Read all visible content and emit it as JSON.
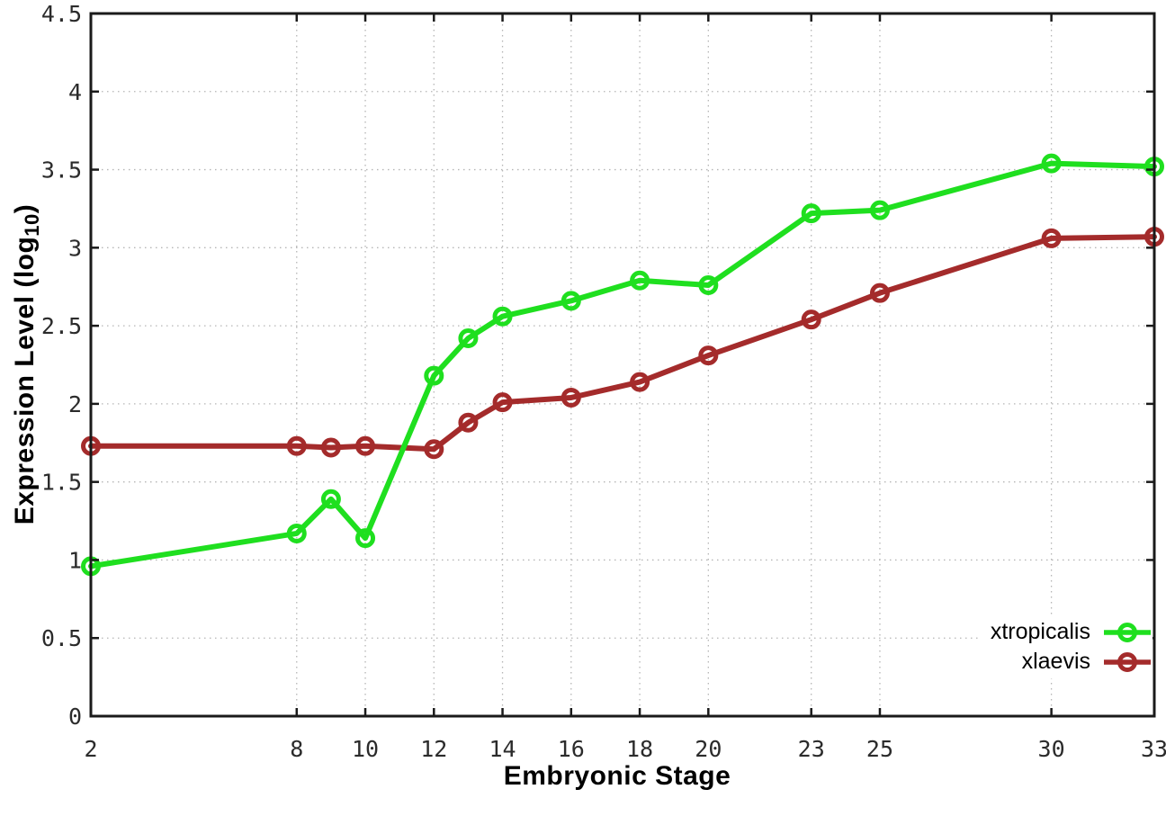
{
  "chart_data": {
    "type": "line",
    "title": "",
    "xlabel": "Embryonic Stage",
    "ylabel_parts": {
      "main": "Expression Level (log",
      "sub": "10",
      "close": ")"
    },
    "xlim": [
      2,
      33
    ],
    "ylim": [
      0,
      4.5
    ],
    "grid": true,
    "grid_style": "dotted",
    "legend_position": "inside-bottom-right",
    "background_color": "#ffffff",
    "border_color": "#1a1a1a",
    "grid_color": "#b5b5b5",
    "tick_label_color": "#2b2b2b",
    "x_ticks": [
      2,
      8,
      10,
      12,
      14,
      16,
      18,
      20,
      23,
      25,
      30,
      33
    ],
    "x_tick_labels": [
      "2",
      "8",
      "10",
      "12",
      "14",
      "16",
      "18",
      "20",
      "23",
      "25",
      "30",
      "33"
    ],
    "y_ticks": [
      0,
      0.5,
      1,
      1.5,
      2,
      2.5,
      3,
      3.5,
      4,
      4.5
    ],
    "y_tick_labels": [
      "0",
      "0.5",
      "1",
      "1.5",
      "2",
      "2.5",
      "3",
      "3.5",
      "4",
      "4.5"
    ],
    "x": [
      2,
      8,
      9,
      10,
      12,
      13,
      14,
      16,
      18,
      20,
      23,
      25,
      30,
      33
    ],
    "series": [
      {
        "name": "xtropicalis",
        "color": "#1fdf1f",
        "marker": "open-circle",
        "values": [
          0.96,
          1.17,
          1.39,
          1.14,
          2.18,
          2.42,
          2.56,
          2.66,
          2.79,
          2.76,
          3.22,
          3.24,
          3.54,
          3.52
        ]
      },
      {
        "name": "xlaevis",
        "color": "#a42b2b",
        "marker": "open-circle",
        "values": [
          1.73,
          1.73,
          1.72,
          1.73,
          1.71,
          1.88,
          2.01,
          2.04,
          2.14,
          2.31,
          2.54,
          2.71,
          3.06,
          3.07
        ]
      }
    ]
  }
}
